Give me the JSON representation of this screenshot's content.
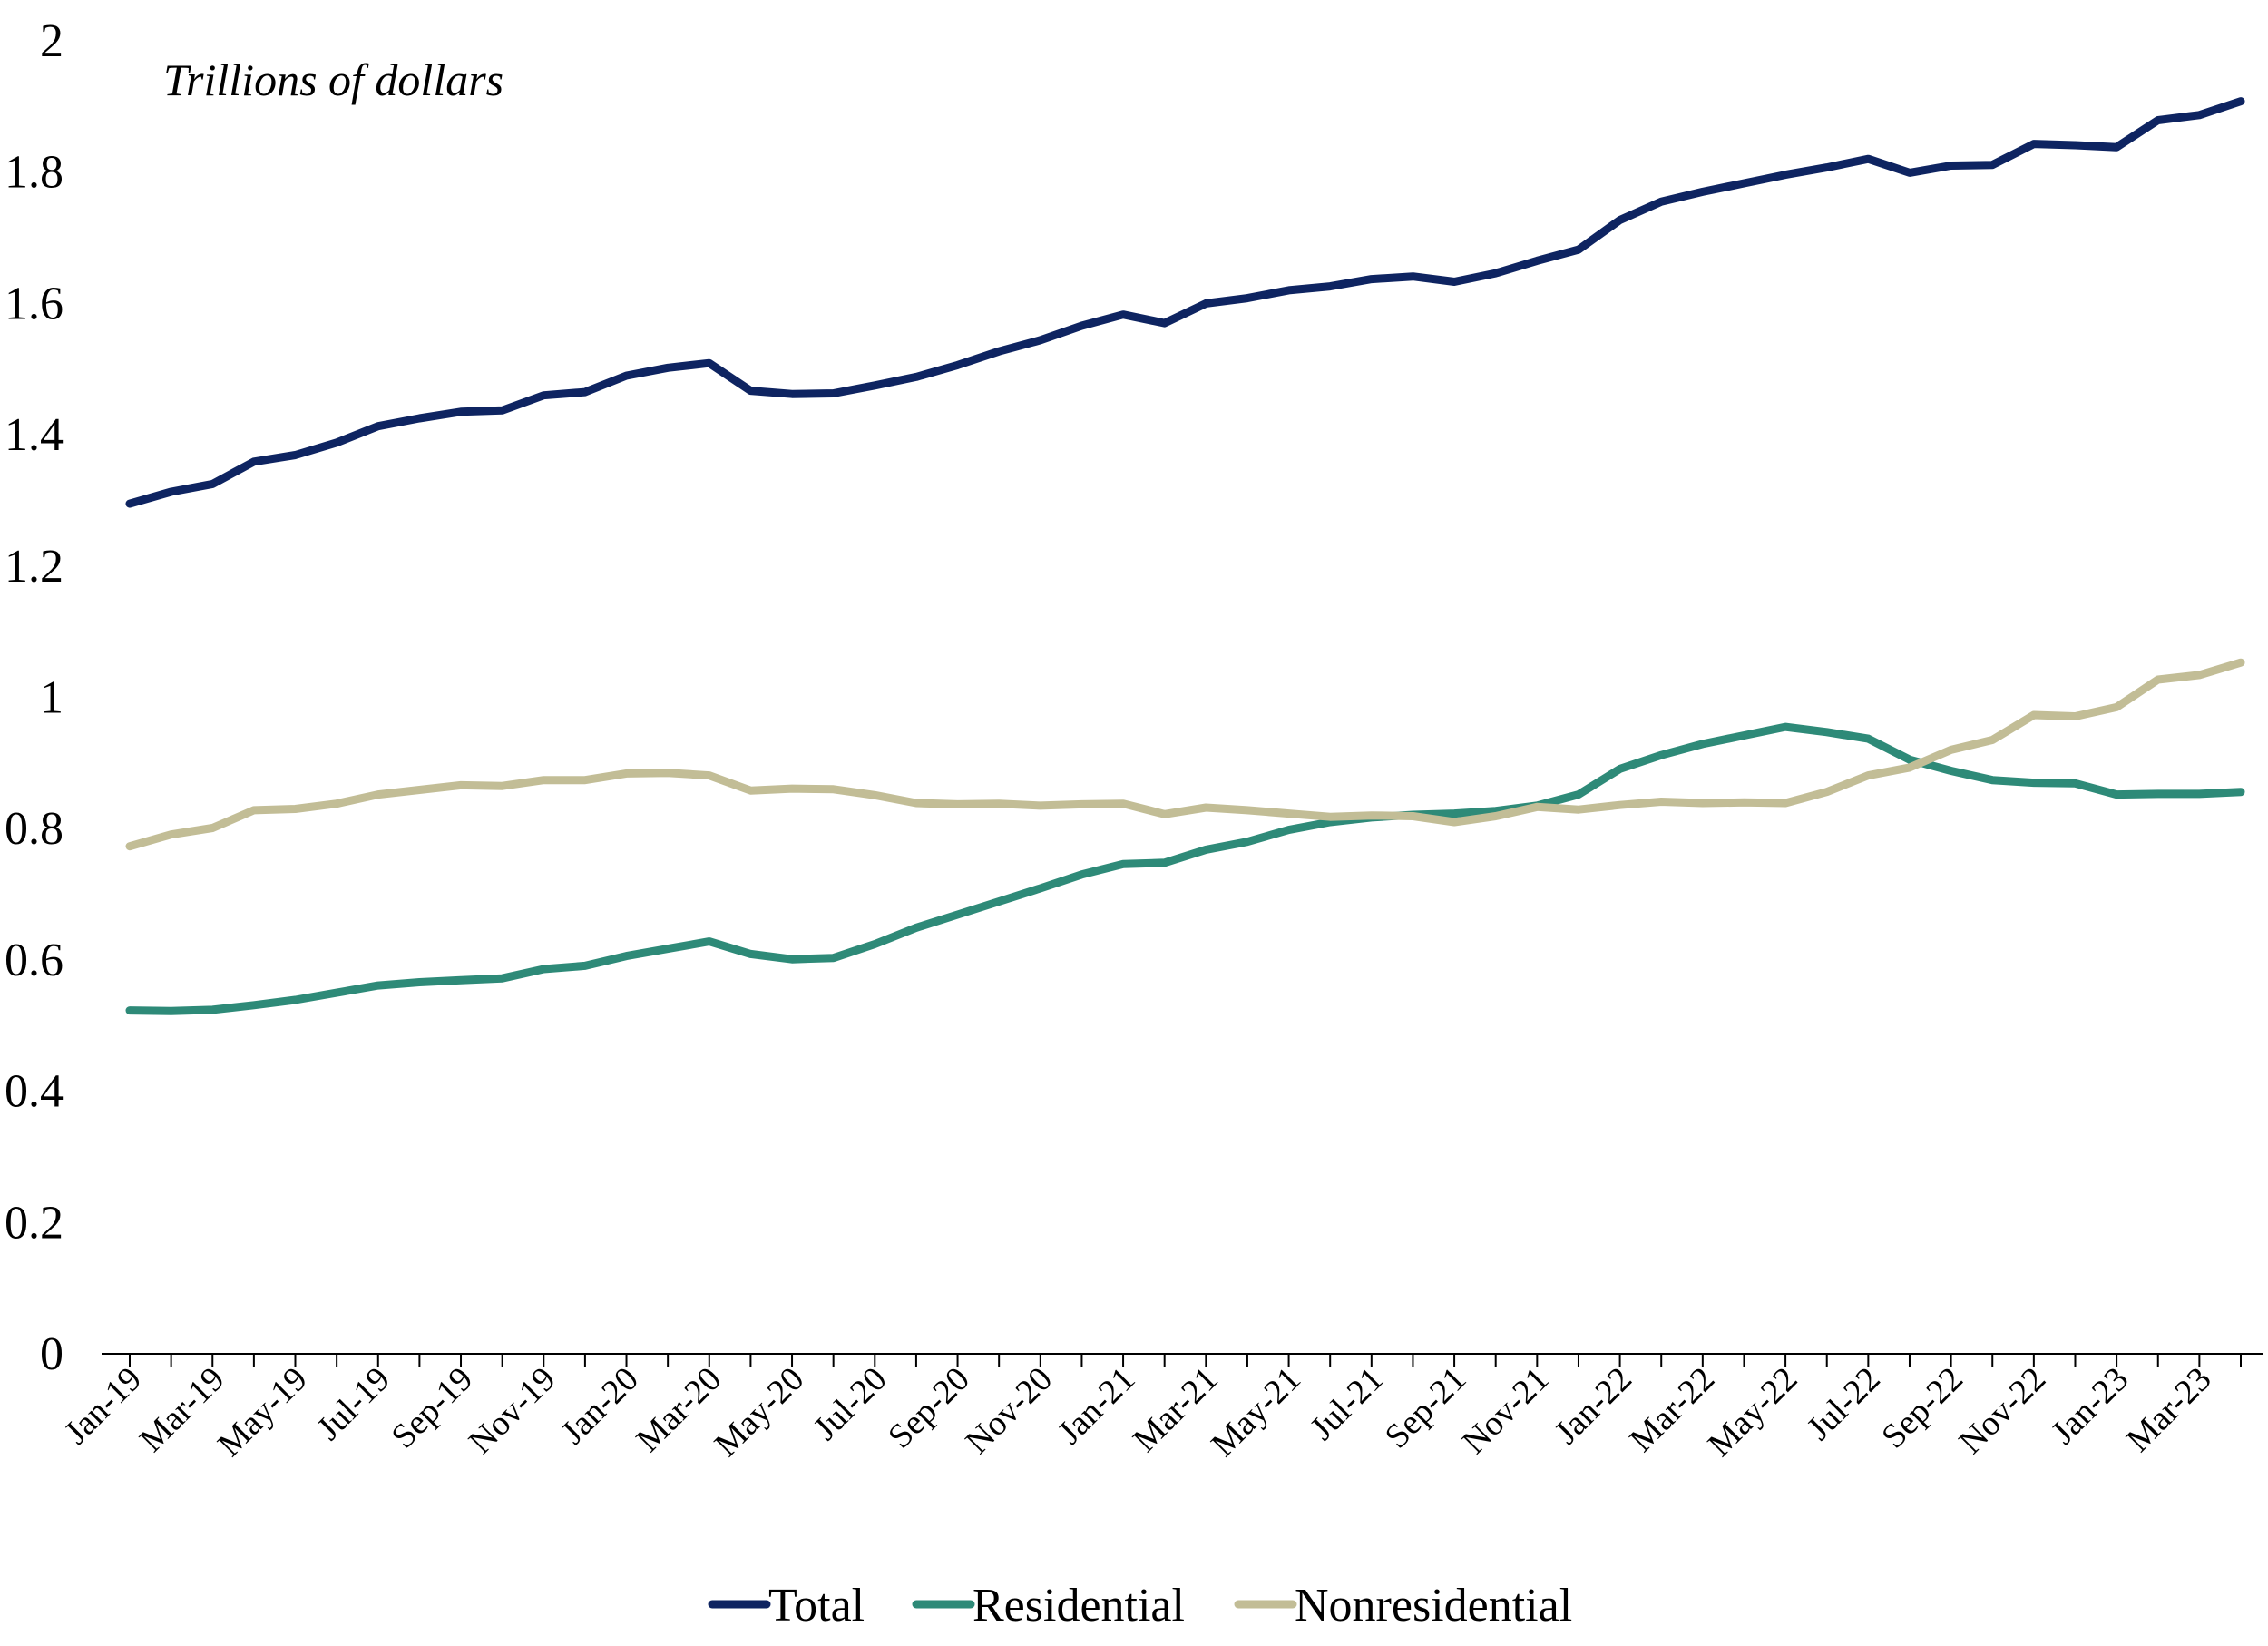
{
  "chart_data": {
    "type": "line",
    "unit_label": "Trillions of dollars",
    "ylim": [
      0,
      2
    ],
    "yticks": [
      "0",
      "0.2",
      "0.4",
      "0.6",
      "0.8",
      "1",
      "1.2",
      "1.4",
      "1.6",
      "1.8",
      "2"
    ],
    "grid": false,
    "legend_position": "bottom-center",
    "x": [
      "Jan-19",
      "Feb-19",
      "Mar-19",
      "Apr-19",
      "May-19",
      "Jun-19",
      "Jul-19",
      "Aug-19",
      "Sep-19",
      "Oct-19",
      "Nov-19",
      "Dec-19",
      "Jan-20",
      "Feb-20",
      "Mar-20",
      "Apr-20",
      "May-20",
      "Jun-20",
      "Jul-20",
      "Aug-20",
      "Sep-20",
      "Oct-20",
      "Nov-20",
      "Dec-20",
      "Jan-21",
      "Feb-21",
      "Mar-21",
      "Apr-21",
      "May-21",
      "Jun-21",
      "Jul-21",
      "Aug-21",
      "Sep-21",
      "Oct-21",
      "Nov-21",
      "Dec-21",
      "Jan-22",
      "Feb-22",
      "Mar-22",
      "Apr-22",
      "May-22",
      "Jun-22",
      "Jul-22",
      "Aug-22",
      "Sep-22",
      "Oct-22",
      "Nov-22",
      "Dec-22",
      "Jan-23",
      "Feb-23",
      "Mar-23",
      "Apr-23"
    ],
    "xtick_labels": [
      "Jan-19",
      "Mar-19",
      "May-19",
      "Jul-19",
      "Sep-19",
      "Nov-19",
      "Jan-20",
      "Mar-20",
      "May-20",
      "Jul-20",
      "Sep-20",
      "Nov-20",
      "Jan-21",
      "Mar-21",
      "May-21",
      "Jul-21",
      "Sep-21",
      "Nov-21",
      "Jan-22",
      "Mar-22",
      "May-22",
      "Jul-22",
      "Sep-22",
      "Nov-22",
      "Jan-23",
      "Mar-23"
    ],
    "series": [
      {
        "name": "Total",
        "color": "#0e2461",
        "values": [
          1.295,
          1.313,
          1.325,
          1.359,
          1.369,
          1.388,
          1.413,
          1.425,
          1.435,
          1.437,
          1.46,
          1.465,
          1.49,
          1.502,
          1.509,
          1.467,
          1.462,
          1.463,
          1.475,
          1.488,
          1.506,
          1.527,
          1.544,
          1.566,
          1.583,
          1.57,
          1.6,
          1.608,
          1.62,
          1.626,
          1.637,
          1.641,
          1.633,
          1.646,
          1.665,
          1.682,
          1.727,
          1.755,
          1.77,
          1.783,
          1.796,
          1.807,
          1.82,
          1.799,
          1.81,
          1.811,
          1.843,
          1.841,
          1.838,
          1.879,
          1.887,
          1.908
        ]
      },
      {
        "name": "Residential",
        "color": "#2e8a78",
        "values": [
          0.523,
          0.522,
          0.524,
          0.531,
          0.539,
          0.55,
          0.561,
          0.566,
          0.569,
          0.572,
          0.586,
          0.591,
          0.606,
          0.617,
          0.628,
          0.609,
          0.601,
          0.603,
          0.624,
          0.649,
          0.669,
          0.689,
          0.709,
          0.73,
          0.746,
          0.748,
          0.768,
          0.78,
          0.798,
          0.81,
          0.817,
          0.821,
          0.823,
          0.827,
          0.835,
          0.852,
          0.891,
          0.912,
          0.929,
          0.942,
          0.955,
          0.947,
          0.937,
          0.905,
          0.888,
          0.874,
          0.87,
          0.869,
          0.852,
          0.853,
          0.853,
          0.856
        ]
      },
      {
        "name": "Nonresidential",
        "color": "#c2bd96",
        "values": [
          0.773,
          0.791,
          0.801,
          0.828,
          0.83,
          0.838,
          0.852,
          0.859,
          0.866,
          0.865,
          0.874,
          0.874,
          0.884,
          0.885,
          0.881,
          0.858,
          0.861,
          0.86,
          0.851,
          0.839,
          0.837,
          0.838,
          0.835,
          0.837,
          0.838,
          0.822,
          0.832,
          0.828,
          0.823,
          0.818,
          0.82,
          0.819,
          0.81,
          0.819,
          0.833,
          0.829,
          0.836,
          0.841,
          0.839,
          0.84,
          0.839,
          0.856,
          0.881,
          0.893,
          0.92,
          0.935,
          0.973,
          0.971,
          0.985,
          1.027,
          1.034,
          1.053
        ]
      }
    ]
  }
}
